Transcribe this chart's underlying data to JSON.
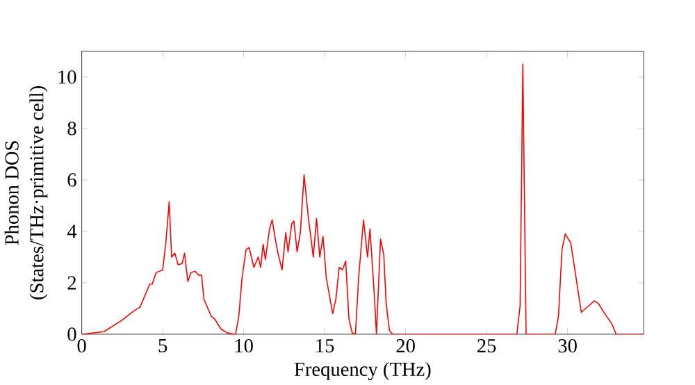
{
  "chart_data": {
    "type": "line",
    "xlabel": "Frequency (THz)",
    "ylabel": "Phonon DOS\n(States/THz·primitive cell)",
    "xlim": [
      0,
      34.7
    ],
    "ylim": [
      0,
      11
    ],
    "xticks": [
      0,
      5,
      10,
      15,
      20,
      25,
      30
    ],
    "yticks": [
      0,
      2,
      4,
      6,
      8,
      10
    ],
    "grid": false,
    "legend": false,
    "marker": "none",
    "line_style": "solid",
    "series": [
      {
        "color": "#ff0000",
        "x": [
          0,
          1.37,
          2.5,
          3.2,
          3.6,
          4.2,
          4.35,
          4.6,
          5.0,
          5.2,
          5.4,
          5.55,
          5.75,
          5.95,
          6.2,
          6.35,
          6.55,
          6.75,
          7.0,
          7.2,
          7.4,
          7.55,
          8.0,
          8.2,
          8.6,
          9.0,
          9.5,
          9.7,
          9.9,
          10.15,
          10.34,
          10.63,
          10.9,
          11.05,
          11.2,
          11.34,
          11.6,
          11.76,
          11.98,
          12.1,
          12.37,
          12.6,
          12.74,
          12.97,
          13.1,
          13.3,
          13.5,
          13.73,
          14.0,
          14.3,
          14.5,
          14.7,
          14.9,
          15.1,
          15.5,
          15.7,
          15.9,
          16.1,
          16.3,
          16.5,
          16.7,
          16.9,
          17.1,
          17.4,
          17.65,
          17.8,
          18.07,
          18.2,
          18.45,
          18.65,
          18.8,
          19.0,
          19.2,
          26.87,
          27.07,
          27.24,
          27.44,
          29.24,
          29.44,
          29.66,
          29.86,
          30.2,
          30.85,
          31.3,
          31.66,
          31.9,
          32.3,
          32.74,
          33.0,
          34.7
        ],
        "values": [
          0,
          0.1,
          0.55,
          0.9,
          1.05,
          1.95,
          1.95,
          2.4,
          2.5,
          3.6,
          5.15,
          3.0,
          3.15,
          2.7,
          2.75,
          3.15,
          2.05,
          2.4,
          2.45,
          2.3,
          2.3,
          1.35,
          0.7,
          0.6,
          0.2,
          0.05,
          0,
          0.7,
          2.2,
          3.3,
          3.37,
          2.6,
          3.0,
          2.6,
          3.5,
          2.9,
          4.1,
          4.45,
          3.6,
          3.2,
          2.5,
          3.95,
          3.2,
          4.3,
          4.4,
          3.2,
          3.95,
          6.2,
          4.5,
          3.0,
          4.5,
          3.0,
          3.8,
          2.2,
          0.8,
          1.4,
          2.6,
          2.5,
          2.85,
          0.6,
          0.05,
          0,
          2.2,
          4.45,
          3.0,
          4.1,
          1.5,
          0,
          3.7,
          3.1,
          1.2,
          0.15,
          0,
          0,
          1.1,
          10.5,
          0,
          0,
          0.7,
          3.3,
          3.9,
          3.55,
          0.85,
          1.1,
          1.3,
          1.2,
          0.8,
          0.4,
          0,
          0
        ]
      }
    ]
  }
}
